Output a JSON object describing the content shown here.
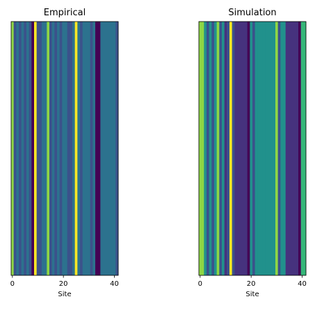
{
  "chart_data": [
    {
      "type": "heatmap",
      "title": "Empirical",
      "xlabel": "Site",
      "ylabel": "",
      "xlim": [
        -0.5,
        41.5
      ],
      "xticks": [
        0,
        20,
        40
      ],
      "yticks": [],
      "site_colors": [
        "#8ed645",
        "#3b528b",
        "#2c728e",
        "#3b528b",
        "#2c728e",
        "#3b528b",
        "#2c728e",
        "#3b528b",
        "#440154",
        "#fde725",
        "#3b528b",
        "#3b528b",
        "#2c728e",
        "#2c728e",
        "#8ed645",
        "#3b528b",
        "#2c728e",
        "#3b528b",
        "#2c728e",
        "#3b528b",
        "#2c728e",
        "#2c728e",
        "#3b528b",
        "#3b528b",
        "#2c728e",
        "#fde725",
        "#2c728e",
        "#3b528b",
        "#2c728e",
        "#2c728e",
        "#2c728e",
        "#3b528b",
        "#2c728e",
        "#440154",
        "#440154",
        "#2c728e",
        "#2c728e",
        "#2c728e",
        "#2c728e",
        "#2c728e",
        "#2c728e",
        "#3b528b"
      ]
    },
    {
      "type": "heatmap",
      "title": "Simulation",
      "xlabel": "Site",
      "ylabel": "",
      "xlim": [
        -0.5,
        41.5
      ],
      "xticks": [
        0,
        20,
        40
      ],
      "yticks": [],
      "site_colors": [
        "#8ed645",
        "#8ed645",
        "#21918c",
        "#3b528b",
        "#21918c",
        "#3b528b",
        "#21918c",
        "#8ed645",
        "#3b528b",
        "#21918c",
        "#46327e",
        "#3b528b",
        "#fde725",
        "#3b528b",
        "#46327e",
        "#46327e",
        "#46327e",
        "#46327e",
        "#46327e",
        "#440154",
        "#21918c",
        "#3b528b",
        "#21918c",
        "#21918c",
        "#21918c",
        "#21918c",
        "#21918c",
        "#21918c",
        "#21918c",
        "#21918c",
        "#8ed645",
        "#3b528b",
        "#21918c",
        "#21918c",
        "#46327e",
        "#46327e",
        "#46327e",
        "#46327e",
        "#46327e",
        "#440154",
        "#35b779",
        "#35b779"
      ]
    }
  ]
}
